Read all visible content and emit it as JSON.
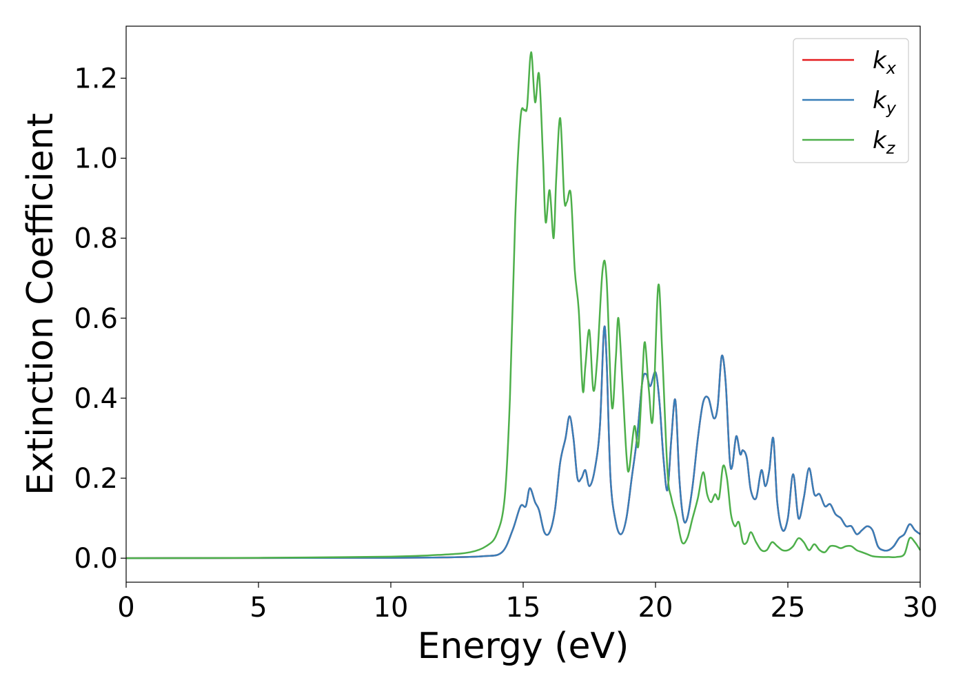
{
  "chart_data": {
    "type": "line",
    "title": "",
    "xlabel": "Energy (eV)",
    "ylabel": "Extinction Coefficient",
    "xlim": [
      0,
      30
    ],
    "ylim": [
      -0.06,
      1.33
    ],
    "xticks": [
      0,
      5,
      10,
      15,
      20,
      25,
      30
    ],
    "yticks": [
      0.0,
      0.2,
      0.4,
      0.6,
      0.8,
      1.0,
      1.2
    ],
    "xtick_labels": [
      "0",
      "5",
      "10",
      "15",
      "20",
      "25",
      "30"
    ],
    "ytick_labels": [
      "0.0",
      "0.2",
      "0.4",
      "0.6",
      "0.8",
      "1.0",
      "1.2"
    ],
    "grid": false,
    "legend_position": "top-right",
    "legend": [
      {
        "base": "k",
        "sub": "x",
        "color": "#e41a1c"
      },
      {
        "base": "k",
        "sub": "y",
        "color": "#377eb8"
      },
      {
        "base": "k",
        "sub": "z",
        "color": "#4daf4a"
      }
    ],
    "series": [
      {
        "name": "kx",
        "color": "#e41a1c",
        "x": [
          0,
          5,
          10,
          12,
          13.5,
          14.2,
          14.6,
          14.9,
          15.1,
          15.25,
          15.45,
          15.6,
          15.8,
          16.0,
          16.2,
          16.4,
          16.6,
          16.75,
          16.9,
          17.05,
          17.2,
          17.35,
          17.5,
          17.7,
          17.9,
          18.05,
          18.15,
          18.3,
          18.5,
          18.7,
          18.9,
          19.1,
          19.3,
          19.5,
          19.65,
          19.8,
          20.0,
          20.15,
          20.3,
          20.45,
          20.6,
          20.75,
          20.9,
          21.05,
          21.2,
          21.4,
          21.6,
          21.8,
          22.0,
          22.2,
          22.35,
          22.5,
          22.65,
          22.8,
          22.9,
          23.05,
          23.2,
          23.3,
          23.45,
          23.6,
          23.8,
          24.0,
          24.15,
          24.3,
          24.45,
          24.6,
          24.8,
          25.0,
          25.2,
          25.4,
          25.6,
          25.8,
          26.0,
          26.2,
          26.4,
          26.6,
          26.8,
          27.0,
          27.2,
          27.4,
          27.6,
          27.8,
          28.0,
          28.2,
          28.4,
          28.6,
          28.8,
          29.0,
          29.2,
          29.4,
          29.6,
          29.8,
          30
        ],
        "y": [
          0,
          0.0005,
          0.001,
          0.002,
          0.005,
          0.015,
          0.07,
          0.13,
          0.13,
          0.175,
          0.14,
          0.12,
          0.065,
          0.065,
          0.12,
          0.24,
          0.3,
          0.355,
          0.3,
          0.2,
          0.2,
          0.22,
          0.18,
          0.22,
          0.33,
          0.57,
          0.5,
          0.2,
          0.09,
          0.06,
          0.1,
          0.2,
          0.3,
          0.44,
          0.46,
          0.43,
          0.465,
          0.39,
          0.25,
          0.17,
          0.3,
          0.395,
          0.2,
          0.1,
          0.1,
          0.18,
          0.3,
          0.39,
          0.4,
          0.35,
          0.38,
          0.505,
          0.44,
          0.25,
          0.23,
          0.305,
          0.26,
          0.27,
          0.25,
          0.17,
          0.15,
          0.22,
          0.18,
          0.22,
          0.3,
          0.14,
          0.07,
          0.1,
          0.21,
          0.1,
          0.15,
          0.225,
          0.16,
          0.16,
          0.13,
          0.135,
          0.11,
          0.1,
          0.08,
          0.08,
          0.06,
          0.07,
          0.08,
          0.07,
          0.03,
          0.02,
          0.02,
          0.03,
          0.05,
          0.06,
          0.085,
          0.07,
          0.06
        ]
      },
      {
        "name": "ky",
        "color": "#377eb8",
        "x": [
          0,
          5,
          10,
          12,
          13.5,
          14.2,
          14.6,
          14.9,
          15.1,
          15.25,
          15.45,
          15.6,
          15.8,
          16.0,
          16.2,
          16.4,
          16.6,
          16.75,
          16.9,
          17.05,
          17.2,
          17.35,
          17.5,
          17.7,
          17.9,
          18.05,
          18.15,
          18.3,
          18.5,
          18.7,
          18.9,
          19.1,
          19.3,
          19.5,
          19.65,
          19.8,
          20.0,
          20.15,
          20.3,
          20.45,
          20.6,
          20.75,
          20.9,
          21.05,
          21.2,
          21.4,
          21.6,
          21.8,
          22.0,
          22.2,
          22.35,
          22.5,
          22.65,
          22.8,
          22.9,
          23.05,
          23.2,
          23.3,
          23.45,
          23.6,
          23.8,
          24.0,
          24.15,
          24.3,
          24.45,
          24.6,
          24.8,
          25.0,
          25.2,
          25.4,
          25.6,
          25.8,
          26.0,
          26.2,
          26.4,
          26.6,
          26.8,
          27.0,
          27.2,
          27.4,
          27.6,
          27.8,
          28.0,
          28.2,
          28.4,
          28.6,
          28.8,
          29.0,
          29.2,
          29.4,
          29.6,
          29.8,
          30
        ],
        "y": [
          0,
          0.0005,
          0.001,
          0.002,
          0.005,
          0.015,
          0.07,
          0.13,
          0.13,
          0.175,
          0.14,
          0.12,
          0.065,
          0.065,
          0.12,
          0.24,
          0.3,
          0.355,
          0.3,
          0.2,
          0.2,
          0.22,
          0.18,
          0.22,
          0.33,
          0.57,
          0.5,
          0.2,
          0.09,
          0.06,
          0.1,
          0.2,
          0.3,
          0.44,
          0.46,
          0.43,
          0.465,
          0.39,
          0.25,
          0.17,
          0.3,
          0.395,
          0.2,
          0.1,
          0.1,
          0.18,
          0.3,
          0.39,
          0.4,
          0.35,
          0.38,
          0.505,
          0.44,
          0.25,
          0.23,
          0.305,
          0.26,
          0.27,
          0.25,
          0.17,
          0.15,
          0.22,
          0.18,
          0.22,
          0.3,
          0.14,
          0.07,
          0.1,
          0.21,
          0.1,
          0.15,
          0.225,
          0.16,
          0.16,
          0.13,
          0.135,
          0.11,
          0.1,
          0.08,
          0.08,
          0.06,
          0.07,
          0.08,
          0.07,
          0.03,
          0.02,
          0.02,
          0.03,
          0.05,
          0.06,
          0.085,
          0.07,
          0.06
        ]
      },
      {
        "name": "kz",
        "color": "#4daf4a",
        "x": [
          0,
          5,
          10,
          12,
          13,
          13.6,
          14.0,
          14.3,
          14.5,
          14.7,
          14.9,
          15.05,
          15.15,
          15.3,
          15.45,
          15.6,
          15.75,
          15.85,
          16.0,
          16.15,
          16.25,
          16.4,
          16.55,
          16.65,
          16.8,
          16.95,
          17.1,
          17.25,
          17.35,
          17.5,
          17.65,
          17.8,
          18.0,
          18.15,
          18.35,
          18.5,
          18.6,
          18.75,
          18.9,
          19.0,
          19.2,
          19.35,
          19.5,
          19.6,
          19.75,
          19.9,
          20.1,
          20.25,
          20.45,
          20.6,
          20.8,
          21.0,
          21.2,
          21.4,
          21.6,
          21.8,
          21.95,
          22.1,
          22.25,
          22.4,
          22.55,
          22.7,
          22.85,
          23.0,
          23.15,
          23.3,
          23.45,
          23.6,
          23.8,
          24.0,
          24.2,
          24.4,
          24.6,
          24.8,
          25.0,
          25.2,
          25.4,
          25.6,
          25.8,
          26.0,
          26.2,
          26.4,
          26.6,
          26.8,
          27.0,
          27.2,
          27.4,
          27.6,
          27.8,
          28.0,
          28.2,
          28.5,
          28.8,
          29.1,
          29.4,
          29.6,
          29.8,
          30
        ],
        "y": [
          0,
          0.001,
          0.004,
          0.009,
          0.015,
          0.03,
          0.06,
          0.15,
          0.4,
          0.85,
          1.1,
          1.12,
          1.13,
          1.265,
          1.14,
          1.21,
          1.0,
          0.84,
          0.92,
          0.8,
          0.95,
          1.1,
          0.9,
          0.89,
          0.91,
          0.72,
          0.62,
          0.42,
          0.48,
          0.57,
          0.42,
          0.5,
          0.72,
          0.7,
          0.38,
          0.5,
          0.6,
          0.44,
          0.26,
          0.22,
          0.33,
          0.28,
          0.45,
          0.54,
          0.42,
          0.35,
          0.68,
          0.52,
          0.22,
          0.15,
          0.1,
          0.04,
          0.05,
          0.1,
          0.15,
          0.215,
          0.16,
          0.14,
          0.16,
          0.15,
          0.23,
          0.2,
          0.11,
          0.08,
          0.09,
          0.04,
          0.04,
          0.065,
          0.04,
          0.02,
          0.02,
          0.04,
          0.03,
          0.02,
          0.02,
          0.03,
          0.05,
          0.04,
          0.02,
          0.035,
          0.02,
          0.015,
          0.03,
          0.03,
          0.025,
          0.03,
          0.03,
          0.02,
          0.015,
          0.01,
          0.005,
          0.003,
          0.003,
          0.003,
          0.01,
          0.05,
          0.04,
          0.02
        ]
      }
    ]
  }
}
